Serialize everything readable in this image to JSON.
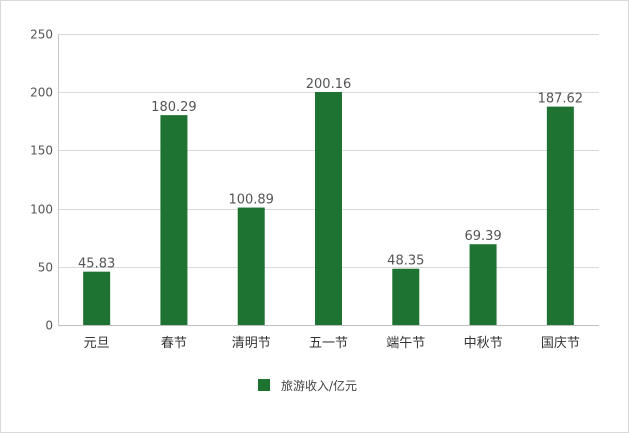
{
  "chart_data": {
    "type": "bar",
    "categories": [
      "元旦",
      "春节",
      "清明节",
      "五一节",
      "端午节",
      "中秋节",
      "国庆节"
    ],
    "series": [
      {
        "name": "旅游收入/亿元",
        "values": [
          45.83,
          180.29,
          100.89,
          200.16,
          48.35,
          69.39,
          187.62
        ],
        "data_labels": [
          "45.83",
          "180.29",
          "100.89",
          "200.16",
          "48.35",
          "69.39",
          "187.62"
        ],
        "color": "#1e7332"
      }
    ],
    "ylim": [
      0,
      250
    ],
    "yticks": [
      0,
      50,
      100,
      150,
      200,
      250
    ],
    "grid": true,
    "legend": "bottom"
  }
}
